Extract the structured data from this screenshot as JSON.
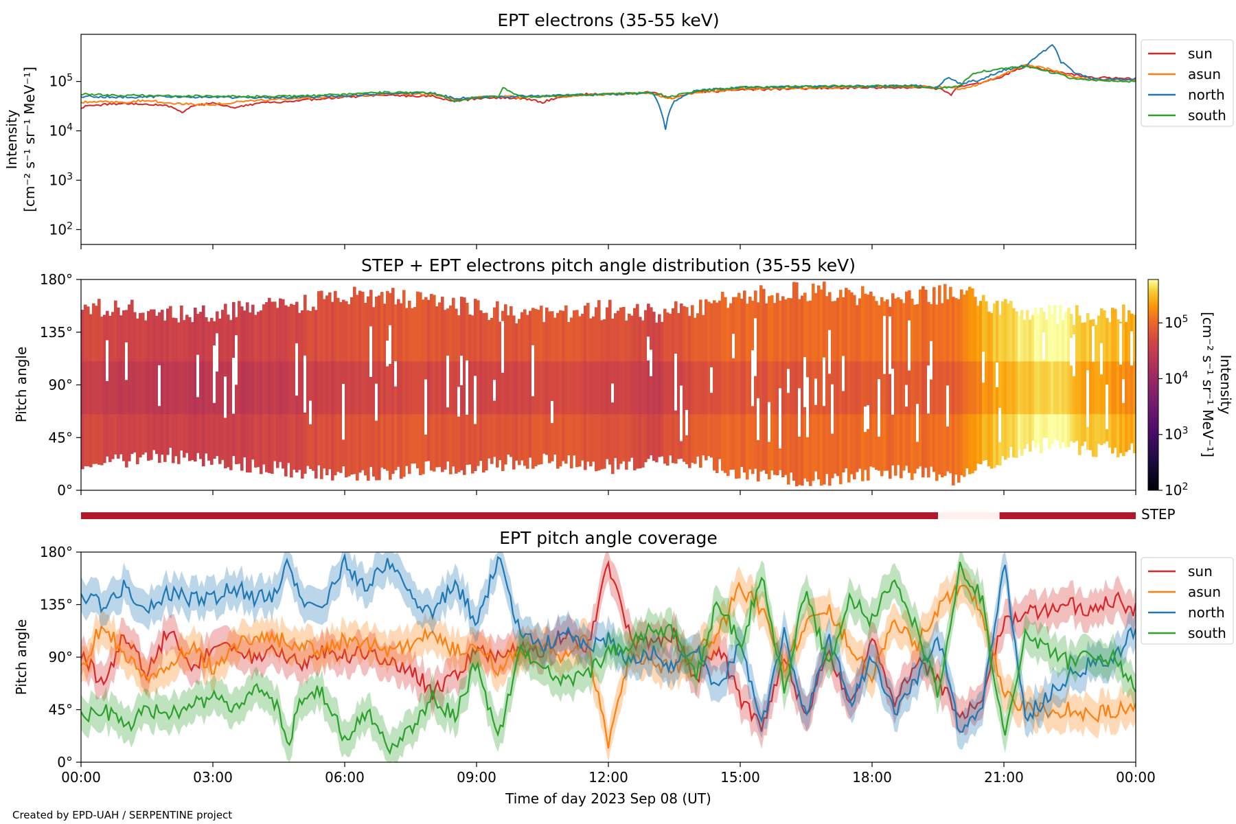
{
  "figure": {
    "credit": "Created by EPD-UAH / SERPENTINE project",
    "xlabel": "Time of day 2023 Sep 08 (UT)",
    "x_ticks": [
      "00:00",
      "03:00",
      "06:00",
      "09:00",
      "12:00",
      "15:00",
      "18:00",
      "21:00",
      "00:00"
    ]
  },
  "colors": {
    "sun": "#d62728",
    "asun": "#ff7f0e",
    "north": "#1f77b4",
    "south": "#2ca02c",
    "step_bar": "#b2182b",
    "step_gap": "#fdf1ee"
  },
  "chart_data": [
    {
      "type": "line",
      "title": "EPT electrons (35-55 keV)",
      "ylabel_line1": "Intensity",
      "ylabel_line2": "[cm⁻² s⁻¹ sr⁻¹ MeV⁻¹]",
      "yscale": "log",
      "ylim": [
        50,
        900000
      ],
      "y_ticks": [
        {
          "base": "10",
          "exp": "2",
          "value": 100
        },
        {
          "base": "10",
          "exp": "3",
          "value": 1000
        },
        {
          "base": "10",
          "exp": "4",
          "value": 10000
        },
        {
          "base": "10",
          "exp": "5",
          "value": 100000
        }
      ],
      "xlim": [
        0,
        24
      ],
      "legend": "right-outside",
      "series": [
        {
          "name": "sun",
          "color": "#d62728",
          "x": [
            0,
            0.5,
            1,
            1.5,
            2,
            2.3,
            2.6,
            3,
            3.5,
            4,
            4.5,
            5,
            5.5,
            6,
            7,
            8,
            8.5,
            9,
            9.5,
            10,
            10.5,
            11,
            11.5,
            12,
            12.5,
            13,
            13.2,
            13.4,
            14,
            15,
            16,
            17,
            18,
            19,
            19.5,
            19.8,
            20,
            20.5,
            21,
            21.5,
            22,
            22.5,
            23,
            24
          ],
          "y": [
            30000,
            34000,
            36000,
            34000,
            32000,
            24000,
            33000,
            36000,
            30000,
            36000,
            38000,
            42000,
            44000,
            48000,
            52000,
            50000,
            40000,
            45000,
            46000,
            46000,
            38000,
            50000,
            55000,
            55000,
            58000,
            60000,
            55000,
            45000,
            60000,
            68000,
            70000,
            74000,
            75000,
            76000,
            72000,
            55000,
            80000,
            95000,
            130000,
            200000,
            170000,
            140000,
            120000,
            115000
          ]
        },
        {
          "name": "asun",
          "color": "#ff7f0e",
          "x": [
            0,
            0.5,
            1,
            1.5,
            2,
            3,
            4,
            5,
            6,
            7,
            8,
            8.5,
            9,
            9.5,
            10,
            11,
            12,
            13,
            13.2,
            13.4,
            14,
            15,
            16,
            17,
            18,
            19,
            19.5,
            20,
            20.5,
            21,
            21.5,
            22,
            22.5,
            23,
            24
          ],
          "y": [
            38000,
            40000,
            38000,
            42000,
            36000,
            34000,
            42000,
            45000,
            50000,
            55000,
            55000,
            42000,
            47000,
            50000,
            48000,
            50000,
            55000,
            58000,
            50000,
            45000,
            60000,
            70000,
            72000,
            75000,
            78000,
            80000,
            78000,
            70000,
            90000,
            140000,
            220000,
            180000,
            130000,
            110000,
            105000
          ]
        },
        {
          "name": "north",
          "color": "#1f77b4",
          "x": [
            0,
            1,
            2,
            3,
            4,
            5,
            6,
            7,
            8,
            8.5,
            9,
            10,
            11,
            12,
            13,
            13.2,
            13.3,
            13.5,
            14,
            15,
            16,
            17,
            18,
            19,
            19.5,
            19.7,
            20,
            20.5,
            21,
            21.5,
            21.9,
            22.1,
            22.3,
            22.6,
            23,
            24
          ],
          "y": [
            50000,
            48000,
            50000,
            48000,
            47000,
            48000,
            52000,
            58000,
            58000,
            45000,
            48000,
            50000,
            52000,
            55000,
            58000,
            25000,
            11000,
            40000,
            65000,
            75000,
            78000,
            80000,
            80000,
            82000,
            75000,
            120000,
            90000,
            110000,
            170000,
            210000,
            400000,
            560000,
            250000,
            150000,
            110000,
            110000
          ]
        },
        {
          "name": "south",
          "color": "#2ca02c",
          "x": [
            0,
            1,
            2,
            3,
            4,
            5,
            6,
            7,
            8,
            8.5,
            9,
            9.5,
            9.6,
            10,
            11,
            12,
            13,
            13.4,
            14,
            15,
            16,
            17,
            18,
            19,
            19.5,
            20,
            20.3,
            20.5,
            21,
            21.5,
            22,
            22.5,
            23,
            24
          ],
          "y": [
            55000,
            52000,
            52000,
            50000,
            50000,
            50000,
            55000,
            60000,
            58000,
            40000,
            48000,
            50000,
            75000,
            48000,
            52000,
            56000,
            58000,
            48000,
            65000,
            75000,
            78000,
            80000,
            82000,
            80000,
            75000,
            80000,
            140000,
            160000,
            180000,
            200000,
            160000,
            120000,
            105000,
            100000
          ]
        }
      ]
    },
    {
      "type": "heatmap",
      "title": "STEP + EPT electrons pitch angle distribution (35-55 keV)",
      "ylabel": "Pitch angle",
      "ylim": [
        0,
        180
      ],
      "y_ticks": [
        "0°",
        "45°",
        "90°",
        "135°",
        "180°"
      ],
      "xlim": [
        0,
        24
      ],
      "colorbar": {
        "label_line1": "Intensity",
        "label_line2": "[cm⁻² s⁻¹ sr⁻¹ MeV⁻¹]",
        "scale": "log",
        "range": [
          100,
          600000
        ],
        "ticks": [
          {
            "base": "10",
            "exp": "2",
            "value": 100
          },
          {
            "base": "10",
            "exp": "3",
            "value": 1000
          },
          {
            "base": "10",
            "exp": "4",
            "value": 10000
          },
          {
            "base": "10",
            "exp": "5",
            "value": 100000
          }
        ]
      },
      "band_profile": {
        "x": [
          0,
          1,
          2,
          3,
          4,
          5,
          6,
          7,
          8,
          9,
          10,
          11,
          12,
          13,
          14,
          15,
          16,
          17,
          18,
          19,
          20,
          21,
          22,
          23,
          24
        ],
        "lower_deg": [
          25,
          25,
          30,
          25,
          20,
          15,
          15,
          15,
          20,
          20,
          25,
          25,
          20,
          25,
          25,
          15,
          10,
          10,
          15,
          15,
          10,
          30,
          40,
          35,
          35
        ],
        "upper_deg": [
          155,
          155,
          150,
          150,
          155,
          160,
          165,
          165,
          160,
          155,
          150,
          150,
          155,
          150,
          155,
          165,
          170,
          170,
          165,
          165,
          170,
          155,
          150,
          150,
          150
        ],
        "center_intensity": [
          30000,
          28000,
          24000,
          22000,
          26000,
          30000,
          38000,
          45000,
          42000,
          40000,
          42000,
          45000,
          40000,
          28000,
          50000,
          60000,
          62000,
          65000,
          68000,
          70000,
          70000,
          250000,
          400000,
          200000,
          160000
        ]
      },
      "step_bar": {
        "label": "STEP",
        "coverage": [
          {
            "from": 0,
            "to": 19.5,
            "available": true
          },
          {
            "from": 19.5,
            "to": 20.9,
            "available": false
          },
          {
            "from": 20.9,
            "to": 24,
            "available": true
          }
        ]
      }
    },
    {
      "type": "line",
      "title": "EPT pitch angle coverage",
      "ylabel": "Pitch angle",
      "ylim": [
        0,
        180
      ],
      "y_ticks": [
        "0°",
        "45°",
        "90°",
        "135°",
        "180°"
      ],
      "xlim": [
        0,
        24
      ],
      "legend": "right-outside",
      "band_halfwidth_deg": 15,
      "series": [
        {
          "name": "sun",
          "color": "#d62728",
          "x": [
            0,
            0.5,
            1,
            1.5,
            2,
            2.5,
            3,
            3.5,
            4,
            4.5,
            5,
            5.5,
            6,
            6.5,
            7,
            7.5,
            8,
            8.5,
            9,
            9.5,
            10,
            10.5,
            11,
            11.5,
            12,
            12.5,
            13,
            13.5,
            14,
            14.5,
            15,
            15.5,
            16,
            16.5,
            17,
            17.5,
            18,
            18.5,
            19,
            19.5,
            20,
            20.5,
            21,
            21.5,
            22,
            22.5,
            23,
            23.5,
            24
          ],
          "y": [
            95,
            65,
            110,
            75,
            115,
            80,
            100,
            95,
            90,
            95,
            85,
            95,
            90,
            95,
            85,
            80,
            60,
            75,
            95,
            90,
            100,
            95,
            110,
            95,
            170,
            105,
            100,
            110,
            70,
            100,
            55,
            30,
            90,
            40,
            100,
            45,
            110,
            50,
            85,
            70,
            40,
            55,
            120,
            130,
            130,
            135,
            130,
            140,
            130
          ]
        },
        {
          "name": "asun",
          "color": "#ff7f0e",
          "x": [
            0,
            0.5,
            1,
            1.5,
            2,
            2.5,
            3,
            3.5,
            4,
            4.5,
            5,
            5.5,
            6,
            6.5,
            7,
            7.5,
            8,
            8.5,
            9,
            9.5,
            10,
            10.5,
            11,
            11.5,
            12,
            12.5,
            13,
            13.5,
            14,
            14.5,
            15,
            15.5,
            16,
            16.5,
            17,
            17.5,
            18,
            18.5,
            19,
            19.5,
            20,
            20.5,
            21,
            21.5,
            22,
            22.5,
            23,
            23.5,
            24
          ],
          "y": [
            80,
            120,
            90,
            70,
            80,
            100,
            80,
            100,
            110,
            105,
            100,
            95,
            105,
            100,
            95,
            100,
            110,
            95,
            100,
            80,
            95,
            100,
            90,
            105,
            15,
            95,
            85,
            80,
            95,
            110,
            150,
            130,
            80,
            120,
            130,
            100,
            75,
            120,
            100,
            130,
            150,
            130,
            60,
            45,
            45,
            45,
            40,
            45,
            45
          ]
        },
        {
          "name": "north",
          "color": "#1f77b4",
          "x": [
            0,
            0.5,
            1,
            1.5,
            2,
            2.5,
            3,
            3.5,
            4,
            4.5,
            4.7,
            5,
            5.5,
            6,
            6.5,
            7,
            7.5,
            8,
            8.5,
            9,
            9.5,
            10,
            10.5,
            11,
            11.5,
            12,
            12.5,
            13,
            13.5,
            14,
            14.5,
            15,
            15.5,
            16,
            16.5,
            17,
            17.5,
            18,
            18.5,
            19,
            19.5,
            20,
            20.5,
            21,
            21.5,
            22,
            22.5,
            23,
            23.5,
            24
          ],
          "y": [
            140,
            135,
            150,
            130,
            145,
            140,
            140,
            150,
            140,
            145,
            175,
            140,
            135,
            170,
            150,
            170,
            140,
            125,
            155,
            120,
            175,
            110,
            100,
            110,
            100,
            105,
            85,
            95,
            80,
            100,
            60,
            100,
            35,
            110,
            40,
            110,
            50,
            90,
            40,
            70,
            110,
            25,
            45,
            170,
            40,
            55,
            75,
            85,
            90,
            115
          ]
        },
        {
          "name": "south",
          "color": "#2ca02c",
          "x": [
            0,
            0.5,
            1,
            1.5,
            2,
            2.5,
            3,
            3.5,
            4,
            4.5,
            4.7,
            5,
            5.5,
            6,
            6.5,
            7,
            7.5,
            8,
            8.5,
            9,
            9.5,
            10,
            10.5,
            11,
            11.5,
            12,
            12.5,
            13,
            13.5,
            14,
            14.5,
            15,
            15.5,
            16,
            16.5,
            17,
            17.5,
            18,
            18.5,
            19,
            19.5,
            20,
            20.5,
            21,
            21.5,
            22,
            22.5,
            23,
            23.5,
            24
          ],
          "y": [
            40,
            45,
            30,
            45,
            40,
            50,
            55,
            45,
            60,
            45,
            10,
            55,
            60,
            20,
            45,
            10,
            30,
            55,
            40,
            85,
            20,
            95,
            80,
            70,
            75,
            95,
            100,
            115,
            110,
            75,
            140,
            100,
            160,
            60,
            150,
            80,
            140,
            120,
            160,
            115,
            60,
            170,
            140,
            20,
            110,
            95,
            85,
            90,
            90,
            65
          ]
        }
      ]
    }
  ]
}
